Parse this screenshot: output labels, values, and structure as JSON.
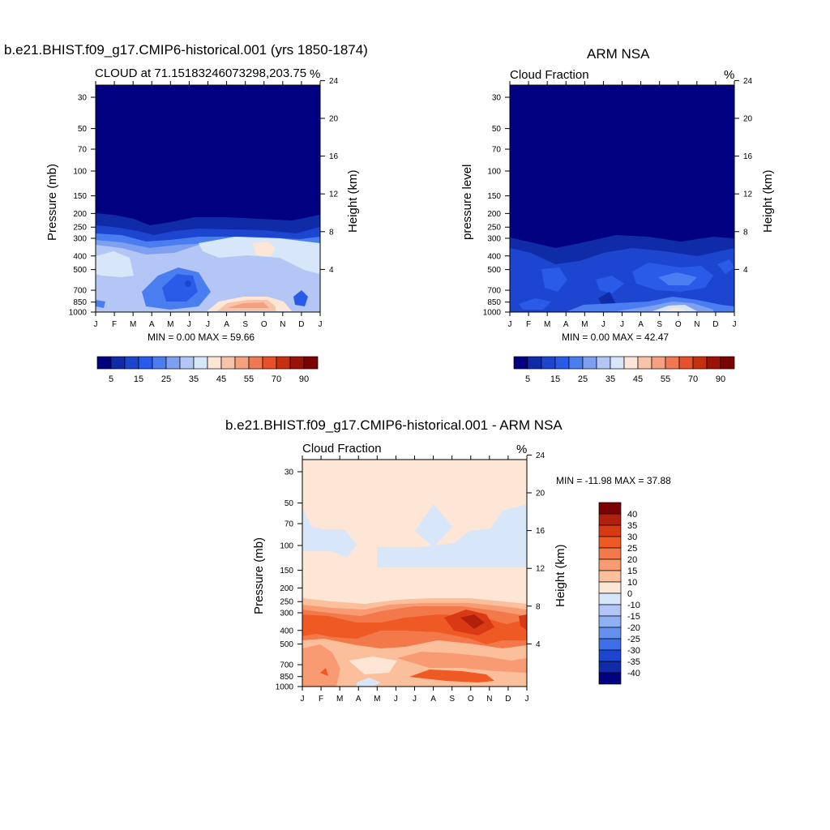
{
  "chart_data": [
    {
      "type": "heatmap",
      "title": "b.e21.BHIST.f09_g17.CMIP6-historical.001 (yrs 1850-1874)",
      "subtitle_left": "CLOUD at 71.15183246073298,203.75",
      "units": "%",
      "ylabel": "Pressure (mb)",
      "ylabel_right": "Height (km)",
      "x_ticks": [
        "J",
        "F",
        "M",
        "A",
        "M",
        "J",
        "J",
        "A",
        "S",
        "O",
        "N",
        "D",
        "J"
      ],
      "y_ticks": [
        "30",
        "50",
        "70",
        "100",
        "150",
        "200",
        "250",
        "300",
        "400",
        "500",
        "700",
        "850",
        "1000"
      ],
      "y_right_ticks": [
        "24",
        "20",
        "16",
        "12",
        "8",
        "4"
      ],
      "min_max_text": "MIN =   0.00 MAX =  59.66",
      "min": 0.0,
      "max": 59.66,
      "colorbar_labels": [
        "5",
        "15",
        "25",
        "35",
        "45",
        "55",
        "70",
        "90"
      ],
      "colorbar_orientation": "horizontal"
    },
    {
      "type": "heatmap",
      "title": "ARM NSA",
      "subtitle_left": "Cloud Fraction",
      "units": "%",
      "ylabel": "pressure level",
      "ylabel_right": "Height (km)",
      "x_ticks": [
        "J",
        "F",
        "M",
        "A",
        "M",
        "J",
        "J",
        "A",
        "S",
        "O",
        "N",
        "D",
        "J"
      ],
      "y_ticks": [
        "30",
        "50",
        "70",
        "100",
        "150",
        "200",
        "250",
        "300",
        "400",
        "500",
        "700",
        "850",
        "1000"
      ],
      "y_right_ticks": [
        "24",
        "20",
        "16",
        "12",
        "8",
        "4"
      ],
      "min_max_text": "MIN =   0.00 MAX =  42.47",
      "min": 0.0,
      "max": 42.47,
      "colorbar_labels": [
        "5",
        "15",
        "25",
        "35",
        "45",
        "55",
        "70",
        "90"
      ],
      "colorbar_orientation": "horizontal"
    },
    {
      "type": "heatmap",
      "title": "b.e21.BHIST.f09_g17.CMIP6-historical.001 - ARM NSA",
      "subtitle_left": "Cloud Fraction",
      "units": "%",
      "ylabel": "Pressure (mb)",
      "ylabel_right": "Height (km)",
      "x_ticks": [
        "J",
        "F",
        "M",
        "A",
        "M",
        "J",
        "J",
        "A",
        "S",
        "O",
        "N",
        "D",
        "J"
      ],
      "y_ticks": [
        "30",
        "50",
        "70",
        "100",
        "150",
        "200",
        "250",
        "300",
        "400",
        "500",
        "700",
        "850",
        "1000"
      ],
      "y_right_ticks": [
        "24",
        "20",
        "16",
        "12",
        "8",
        "4"
      ],
      "min_max_text": "MIN = -11.98 MAX =  37.88",
      "min": -11.98,
      "max": 37.88,
      "colorbar_labels": [
        "40",
        "35",
        "30",
        "25",
        "20",
        "15",
        "10",
        "0",
        "-10",
        "-15",
        "-20",
        "-25",
        "-30",
        "-35",
        "-40"
      ],
      "colorbar_orientation": "vertical"
    }
  ],
  "colors": {
    "seq_scale": [
      "#000080",
      "#0f2ba8",
      "#1c46d0",
      "#2a5be8",
      "#4a7ef0",
      "#7fa0f0",
      "#b3c6f5",
      "#d8e6fa",
      "#fde6d6",
      "#f8c4a9",
      "#f5a07e",
      "#f07852",
      "#e8502c",
      "#c6300f",
      "#9c1306",
      "#7a0202"
    ],
    "diff_scale": [
      "#7a0202",
      "#b1200c",
      "#d93a14",
      "#ef5a24",
      "#f4794a",
      "#f89b72",
      "#fbbf9c",
      "#fde6d6",
      "#d8e6fa",
      "#b3c6f5",
      "#8fb0f2",
      "#6690ee",
      "#3f6fe8",
      "#1c46d0",
      "#0f2ba8",
      "#000080"
    ]
  }
}
